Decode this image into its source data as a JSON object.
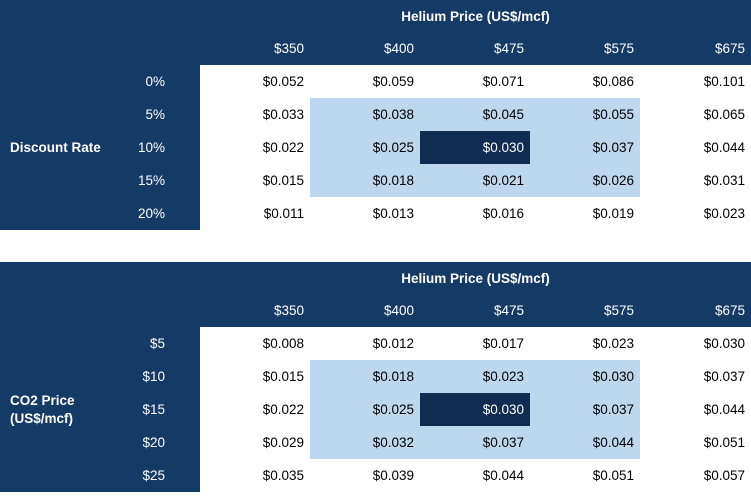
{
  "colors": {
    "navy": "#143A66",
    "selected_navy": "#0F2C52",
    "highlight_blue": "#BDD7EE",
    "cell_text": "#000000",
    "header_text": "#FFFFFF",
    "background": "#FFFFFF"
  },
  "tables": [
    {
      "title": "Helium Price (US$/mcf)",
      "row_group_label_line1": "Discount Rate",
      "row_group_label_line2": "",
      "col_headers": [
        "$350",
        "$400",
        "$475",
        "$575",
        "$675"
      ],
      "rows": [
        {
          "label": "0%",
          "cells": [
            "$0.052",
            "$0.059",
            "$0.071",
            "$0.086",
            "$0.101"
          ]
        },
        {
          "label": "5%",
          "cells": [
            "$0.033",
            "$0.038",
            "$0.045",
            "$0.055",
            "$0.065"
          ]
        },
        {
          "label": "10%",
          "cells": [
            "$0.022",
            "$0.025",
            "$0.030",
            "$0.037",
            "$0.044"
          ]
        },
        {
          "label": "15%",
          "cells": [
            "$0.015",
            "$0.018",
            "$0.021",
            "$0.026",
            "$0.031"
          ]
        },
        {
          "label": "20%",
          "cells": [
            "$0.011",
            "$0.013",
            "$0.016",
            "$0.019",
            "$0.023"
          ]
        }
      ]
    },
    {
      "title": "Helium Price (US$/mcf)",
      "row_group_label_line1": "CO2 Price",
      "row_group_label_line2": "(US$/mcf)",
      "col_headers": [
        "$350",
        "$400",
        "$475",
        "$575",
        "$675"
      ],
      "rows": [
        {
          "label": "$5",
          "cells": [
            "$0.008",
            "$0.012",
            "$0.017",
            "$0.023",
            "$0.030"
          ]
        },
        {
          "label": "$10",
          "cells": [
            "$0.015",
            "$0.018",
            "$0.023",
            "$0.030",
            "$0.037"
          ]
        },
        {
          "label": "$15",
          "cells": [
            "$0.022",
            "$0.025",
            "$0.030",
            "$0.037",
            "$0.044"
          ]
        },
        {
          "label": "$20",
          "cells": [
            "$0.029",
            "$0.032",
            "$0.037",
            "$0.044",
            "$0.051"
          ]
        },
        {
          "label": "$25",
          "cells": [
            "$0.035",
            "$0.039",
            "$0.044",
            "$0.051",
            "$0.057"
          ]
        }
      ]
    }
  ],
  "chart_data": [
    {
      "type": "table",
      "title": "Helium Price (US$/mcf)",
      "x_variable": "Helium Price (US$/mcf)",
      "x_categories": [
        "$350",
        "$400",
        "$475",
        "$575",
        "$675"
      ],
      "y_variable": "Discount Rate",
      "y_categories": [
        "0%",
        "5%",
        "10%",
        "15%",
        "20%"
      ],
      "values": [
        [
          0.052,
          0.059,
          0.071,
          0.086,
          0.101
        ],
        [
          0.033,
          0.038,
          0.045,
          0.055,
          0.065
        ],
        [
          0.022,
          0.025,
          0.03,
          0.037,
          0.044
        ],
        [
          0.015,
          0.018,
          0.021,
          0.026,
          0.031
        ],
        [
          0.011,
          0.013,
          0.016,
          0.019,
          0.023
        ]
      ],
      "highlighted_block": {
        "rows": [
          "5%",
          "10%",
          "15%"
        ],
        "columns": [
          "$400",
          "$475",
          "$575"
        ]
      },
      "base_case_cell": {
        "row": "10%",
        "column": "$475",
        "value": 0.03
      }
    },
    {
      "type": "table",
      "title": "Helium Price (US$/mcf)",
      "x_variable": "Helium Price (US$/mcf)",
      "x_categories": [
        "$350",
        "$400",
        "$475",
        "$575",
        "$675"
      ],
      "y_variable": "CO2 Price (US$/mcf)",
      "y_categories": [
        "$5",
        "$10",
        "$15",
        "$20",
        "$25"
      ],
      "values": [
        [
          0.008,
          0.012,
          0.017,
          0.023,
          0.03
        ],
        [
          0.015,
          0.018,
          0.023,
          0.03,
          0.037
        ],
        [
          0.022,
          0.025,
          0.03,
          0.037,
          0.044
        ],
        [
          0.029,
          0.032,
          0.037,
          0.044,
          0.051
        ],
        [
          0.035,
          0.039,
          0.044,
          0.051,
          0.057
        ]
      ],
      "highlighted_block": {
        "rows": [
          "$10",
          "$15",
          "$20"
        ],
        "columns": [
          "$400",
          "$475",
          "$575"
        ]
      },
      "base_case_cell": {
        "row": "$15",
        "column": "$475",
        "value": 0.03
      }
    }
  ]
}
